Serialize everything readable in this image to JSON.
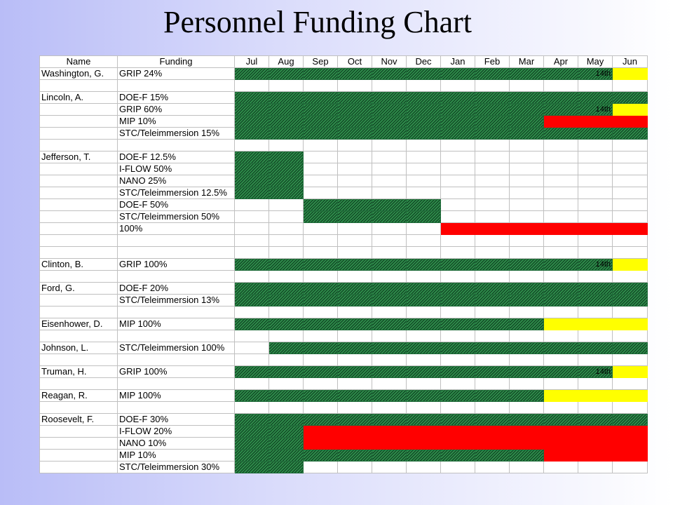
{
  "title": "Personnel Funding Chart",
  "headers": {
    "name": "Name",
    "funding": "Funding",
    "months": [
      "Jul",
      "Aug",
      "Sep",
      "Oct",
      "Nov",
      "Dec",
      "Jan",
      "Feb",
      "Mar",
      "Apr",
      "May",
      "Jun"
    ]
  },
  "legend_colors": {
    "funded": "#1f6b3a",
    "ended": "#ff0000",
    "pending": "#ffff00"
  },
  "rows": [
    {
      "name": "Washington, G.",
      "funding": "GRIP 24%",
      "cells": "GGGGGGGGGGGY",
      "note": "14th"
    },
    {
      "name": "",
      "funding": "",
      "cells": "------------"
    },
    {
      "name": "Lincoln, A.",
      "funding": "DOE-F 15%",
      "cells": "GGGGGGGGGGGG"
    },
    {
      "name": "",
      "funding": "GRIP 60%",
      "cells": "GGGGGGGGGGGY",
      "note": "14th"
    },
    {
      "name": "",
      "funding": "MIP 10%",
      "cells": "GGGGGGGGGRRR"
    },
    {
      "name": "",
      "funding": "STC/Teleimmersion 15%",
      "cells": "GGGGGGGGGGGG"
    },
    {
      "name": "",
      "funding": "",
      "cells": "------------"
    },
    {
      "name": "Jefferson, T.",
      "funding": "DOE-F 12.5%",
      "cells": "GG----------"
    },
    {
      "name": "",
      "funding": "I-FLOW 50%",
      "cells": "GG----------"
    },
    {
      "name": "",
      "funding": "NANO 25%",
      "cells": "GG----------"
    },
    {
      "name": "",
      "funding": "STC/Teleimmersion 12.5%",
      "cells": "GG----------"
    },
    {
      "name": "",
      "funding": "DOE-F 50%",
      "cells": "--GGGG------"
    },
    {
      "name": "",
      "funding": "STC/Teleimmersion 50%",
      "cells": "--GGGG------"
    },
    {
      "name": "",
      "funding": "100%",
      "cells": "------RRRRRR"
    },
    {
      "name": "",
      "funding": "",
      "cells": "------------"
    },
    {
      "name": "",
      "funding": "",
      "cells": "------------"
    },
    {
      "name": "Clinton, B.",
      "funding": "GRIP 100%",
      "cells": "GGGGGGGGGGGY",
      "note": "14th"
    },
    {
      "name": "",
      "funding": "",
      "cells": "------------"
    },
    {
      "name": "Ford, G.",
      "funding": "DOE-F 20%",
      "cells": "GGGGGGGGGGGG"
    },
    {
      "name": "",
      "funding": "STC/Teleimmersion 13%",
      "cells": "GGGGGGGGGGGG"
    },
    {
      "name": "",
      "funding": "",
      "cells": "------------"
    },
    {
      "name": "Eisenhower, D.",
      "funding": "MIP 100%",
      "cells": "GGGGGGGGGYYY"
    },
    {
      "name": "",
      "funding": "",
      "cells": "------------"
    },
    {
      "name": "Johnson, L.",
      "funding": "STC/Teleimmersion 100%",
      "cells": "-GGGGGGGGGGG"
    },
    {
      "name": "",
      "funding": "",
      "cells": "------------"
    },
    {
      "name": "Truman, H.",
      "funding": "GRIP 100%",
      "cells": "GGGGGGGGGGGY",
      "note": "14th"
    },
    {
      "name": "",
      "funding": "",
      "cells": "------------"
    },
    {
      "name": "Reagan, R.",
      "funding": "MIP 100%",
      "cells": "GGGGGGGGGYYY"
    },
    {
      "name": "",
      "funding": "",
      "cells": "------------"
    },
    {
      "name": "Roosevelt, F.",
      "funding": "DOE-F 30%",
      "cells": "GGGGGGGGGGGG"
    },
    {
      "name": "",
      "funding": "I-FLOW 20%",
      "cells": "GGRRRRRRRRRR"
    },
    {
      "name": "",
      "funding": "NANO 10%",
      "cells": "GGRRRRRRRRRR"
    },
    {
      "name": "",
      "funding": "MIP 10%",
      "cells": "GGGGGGGGGRRR"
    },
    {
      "name": "",
      "funding": "STC/Teleimmersion 30%",
      "cells": "GG----------"
    }
  ]
}
